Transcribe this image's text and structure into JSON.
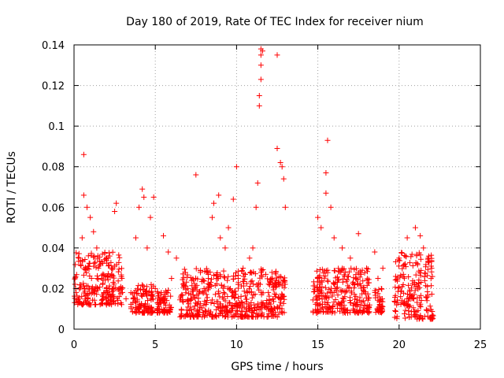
{
  "chart_data": {
    "type": "scatter",
    "title": "Day 180 of 2019, Rate Of TEC Index for receiver nium",
    "xlabel": "GPS time / hours",
    "ylabel": "ROTI / TECUs",
    "xlim": [
      0,
      25
    ],
    "ylim": [
      0,
      0.14
    ],
    "xticks": [
      0,
      5,
      10,
      15,
      20,
      25
    ],
    "xtick_labels": [
      "0",
      "5",
      "10",
      "15",
      "20",
      "25"
    ],
    "yticks": [
      0,
      0.02,
      0.04,
      0.06,
      0.08,
      0.1,
      0.12,
      0.14
    ],
    "ytick_labels": [
      "0",
      "0.02",
      "0.04",
      "0.06",
      "0.08",
      "0.1",
      "0.12",
      "0.14"
    ],
    "grid": true,
    "marker": "+",
    "color": "#ff0000",
    "series": [
      {
        "name": "ROTI",
        "x": [
          0.1,
          0.3,
          0.5,
          0.6,
          0.6,
          0.8,
          1.0,
          1.2,
          1.4,
          1.5,
          1.7,
          2.0,
          2.3,
          2.5,
          2.6,
          2.8,
          3.2,
          3.5,
          3.8,
          4.0,
          4.2,
          4.3,
          4.5,
          4.7,
          4.9,
          5.0,
          5.5,
          5.8,
          6.0,
          6.3,
          7.0,
          7.5,
          8.0,
          8.5,
          8.6,
          8.9,
          9.0,
          9.3,
          9.5,
          9.8,
          10.0,
          10.1,
          10.4,
          10.8,
          11.0,
          11.2,
          11.3,
          11.4,
          11.4,
          11.5,
          11.5,
          11.5,
          11.5,
          11.6,
          12.5,
          12.5,
          12.7,
          12.8,
          12.9,
          13.0,
          15.0,
          15.2,
          15.5,
          15.5,
          15.6,
          15.8,
          16.0,
          16.5,
          17.0,
          17.5,
          18.0,
          18.5,
          18.7,
          19.0,
          20.0,
          20.5,
          21.0,
          21.3,
          21.5,
          21.8,
          22.0
        ],
        "y": [
          0.02,
          0.035,
          0.045,
          0.086,
          0.066,
          0.06,
          0.055,
          0.048,
          0.04,
          0.03,
          0.025,
          0.02,
          0.03,
          0.058,
          0.062,
          0.02,
          0.015,
          0.018,
          0.045,
          0.06,
          0.069,
          0.065,
          0.04,
          0.055,
          0.065,
          0.02,
          0.046,
          0.038,
          0.025,
          0.035,
          0.02,
          0.076,
          0.02,
          0.055,
          0.062,
          0.066,
          0.045,
          0.04,
          0.05,
          0.064,
          0.08,
          0.025,
          0.03,
          0.035,
          0.04,
          0.06,
          0.072,
          0.11,
          0.115,
          0.123,
          0.13,
          0.135,
          0.138,
          0.137,
          0.135,
          0.089,
          0.082,
          0.08,
          0.074,
          0.06,
          0.055,
          0.05,
          0.067,
          0.077,
          0.093,
          0.06,
          0.045,
          0.04,
          0.035,
          0.047,
          0.03,
          0.038,
          0.025,
          0.03,
          0.035,
          0.045,
          0.05,
          0.046,
          0.04,
          0.035,
          0.03
        ]
      }
    ]
  }
}
